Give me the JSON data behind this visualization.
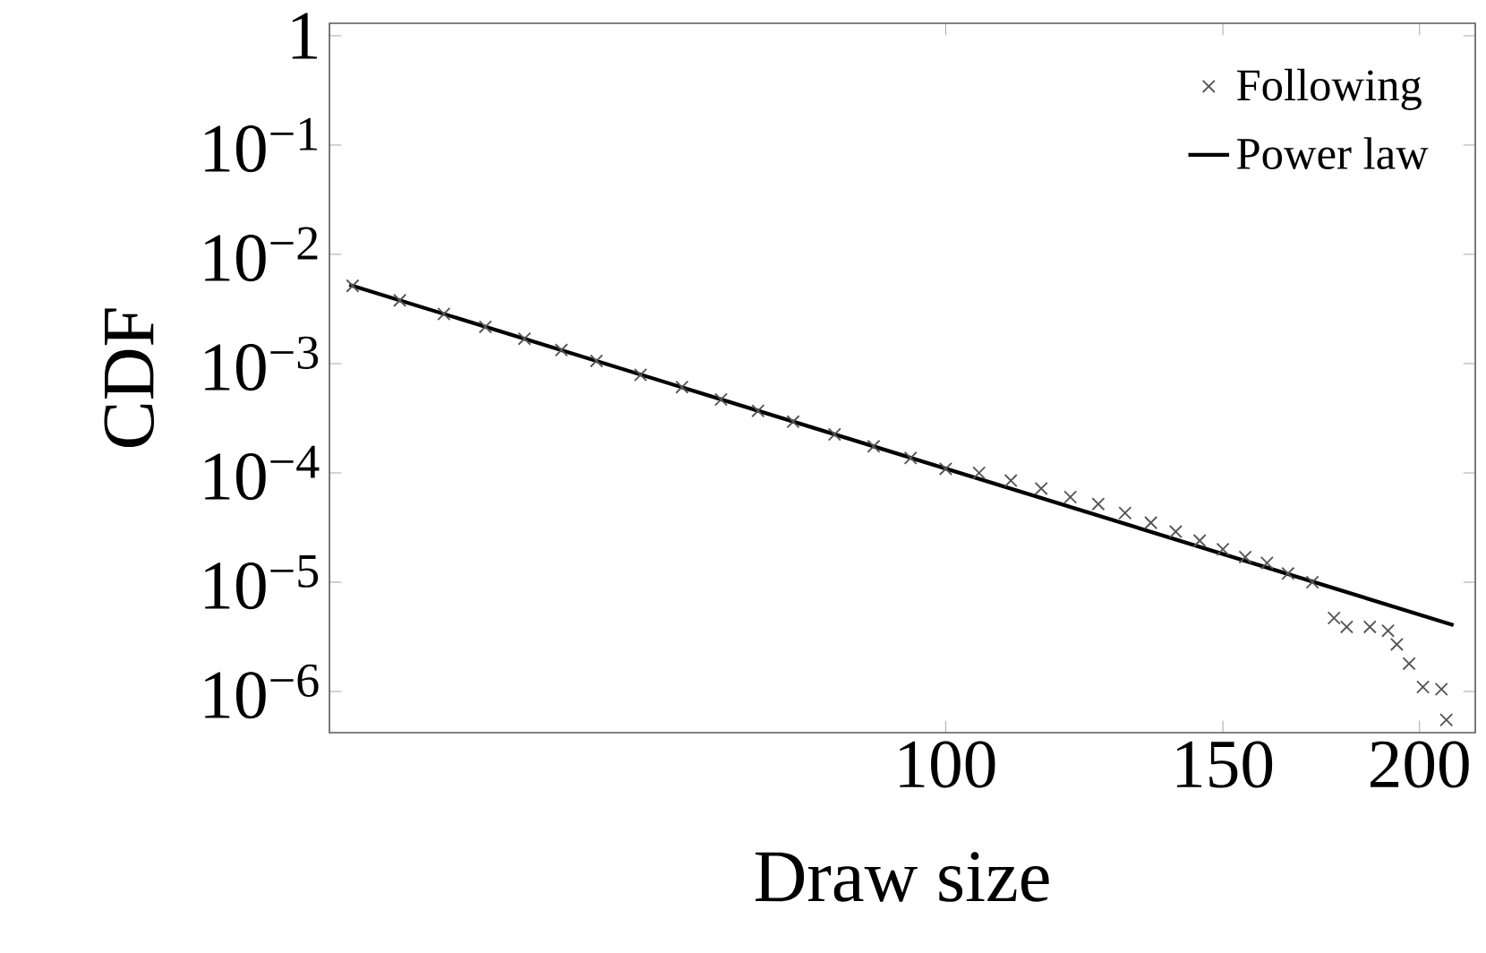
{
  "chart_data": {
    "type": "scatter",
    "xlabel": "Draw size",
    "ylabel": "CDF",
    "log": "xy",
    "legend": "top right",
    "grid": false,
    "xlim": [
      40.6,
      217
    ],
    "ylim": [
      4.2e-07,
      1.3
    ],
    "xticks": [
      100,
      150,
      200
    ],
    "yticks": [
      1,
      {
        "value": 0.1,
        "label": "10$^{−1}$"
      },
      {
        "value": 0.01,
        "label": "10$^{−2}$"
      },
      {
        "value": 0.001,
        "label": "10$^{−3}$"
      },
      {
        "value": 0.0001,
        "label": "10$^{−4}$"
      },
      {
        "value": 1e-05,
        "label": "10$^{−5}$"
      },
      {
        "value": 1e-06,
        "label": "10$^{−6}$"
      }
    ],
    "series": [
      {
        "name": "Following",
        "marker": "cross",
        "color": "#555555",
        "x": [
          42,
          45,
          48,
          51,
          54,
          57,
          60,
          64,
          68,
          72,
          76,
          80,
          85,
          90,
          95,
          100,
          105,
          110,
          115,
          120,
          125,
          130,
          135,
          140,
          145,
          150,
          155,
          160,
          165,
          171,
          176.5,
          179.8,
          186,
          191,
          193.5,
          197,
          201,
          206.5,
          208
        ],
        "values": [
          0.00515,
          0.00379,
          0.00285,
          0.00217,
          0.00169,
          0.00133,
          0.00106,
          0.00079,
          0.00061,
          0.00047,
          0.00037,
          0.000294,
          0.000225,
          0.000175,
          0.000137,
          0.000109,
          0.0001,
          8.5e-05,
          7.2e-05,
          6e-05,
          5.2e-05,
          4.3e-05,
          3.5e-05,
          2.9e-05,
          2.4e-05,
          2e-05,
          1.7e-05,
          1.5e-05,
          1.2e-05,
          1e-05,
          4.7e-06,
          3.9e-06,
          3.9e-06,
          3.6e-06,
          2.7e-06,
          1.8e-06,
          1.1e-06,
          1.05e-06,
          5.5e-07
        ]
      },
      {
        "name": "Power law",
        "type": "line",
        "marker": "none",
        "line_style": "solid",
        "color": "#000000",
        "x": [
          41.8,
          210.2
        ],
        "values": [
          0.00526,
          4.05e-06
        ]
      }
    ]
  }
}
